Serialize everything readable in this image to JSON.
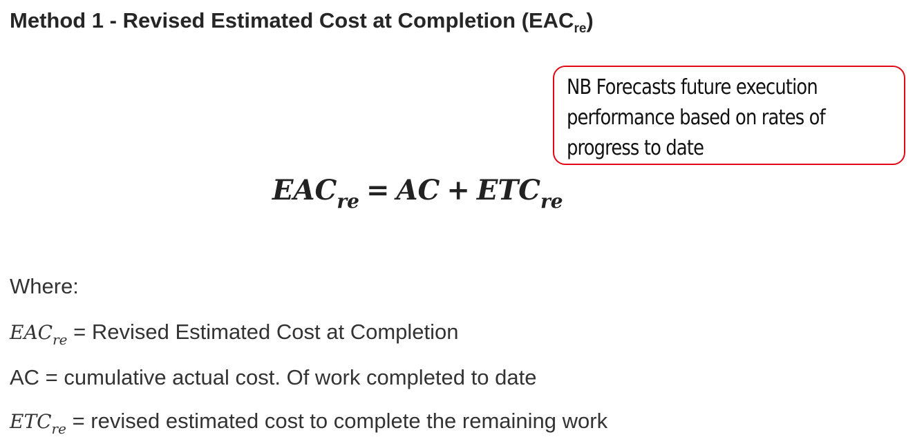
{
  "heading": {
    "text": "Method 1 - Revised Estimated Cost at Completion (EAC",
    "subscript": "re",
    "close": ")"
  },
  "note": {
    "text": "NB Forecasts future execution performance based on rates of progress to date",
    "border_color": "#e30613"
  },
  "formula": {
    "lhs": "EAC",
    "lhs_sub": "re",
    "equals": "=",
    "term1": "AC",
    "plus": "+",
    "term2": "ETC",
    "term2_sub": "re"
  },
  "definitions": {
    "where": "Where:",
    "items": [
      {
        "symbol": "EAC",
        "sub": "re",
        "text": " = Revised Estimated Cost at Completion"
      },
      {
        "text": "AC = cumulative actual cost. Of work completed to date"
      },
      {
        "symbol": "ETC",
        "sub": "re",
        "text": " = revised estimated cost to complete the remaining work"
      }
    ]
  }
}
